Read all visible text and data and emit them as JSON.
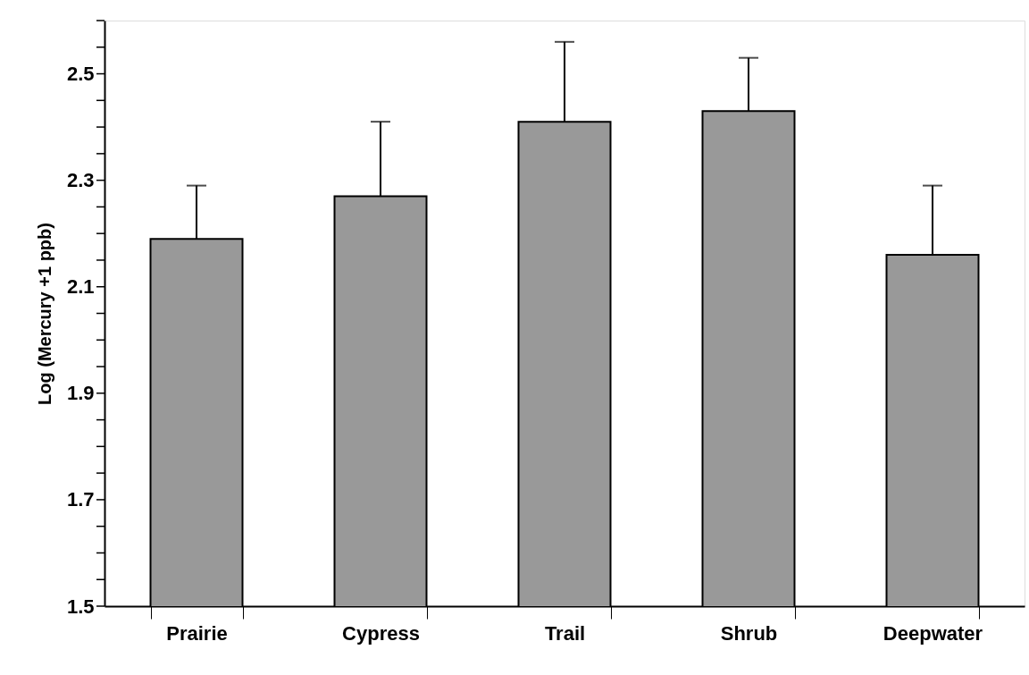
{
  "chart_data": {
    "type": "bar",
    "ylabel": "Log (Mercury +1 ppb)",
    "categories": [
      "Prairie",
      "Cypress",
      "Trail",
      "Shrub",
      "Deepwater"
    ],
    "values": [
      2.19,
      2.27,
      2.41,
      2.43,
      2.16
    ],
    "color": "#999999",
    "errors": [
      [
        2.19,
        2.29
      ],
      [
        2.27,
        2.41
      ],
      [
        2.41,
        2.56
      ],
      [
        2.43,
        2.53
      ],
      [
        2.16,
        2.29
      ]
    ],
    "ylim": [
      1.5,
      2.6
    ],
    "yticks": [
      1.5,
      {
        "value": 1.55,
        "label": null
      },
      {
        "value": 1.6,
        "label": null
      },
      {
        "value": 1.65,
        "label": null
      },
      1.7,
      {
        "value": 1.75,
        "label": null
      },
      {
        "value": 1.8,
        "label": null
      },
      {
        "value": 1.85,
        "label": null
      },
      1.9,
      {
        "value": 1.95,
        "label": null
      },
      {
        "value": 2.0,
        "label": null
      },
      {
        "value": 2.05,
        "label": null
      },
      2.1,
      {
        "value": 2.15,
        "label": null
      },
      {
        "value": 2.2,
        "label": null
      },
      {
        "value": 2.25,
        "label": null
      },
      2.3,
      {
        "value": 2.35,
        "label": null
      },
      {
        "value": 2.4,
        "label": null
      },
      {
        "value": 2.45,
        "label": null
      },
      2.5,
      {
        "value": 2.55,
        "label": null
      },
      {
        "value": 2.6,
        "label": null
      }
    ],
    "grid": false
  }
}
